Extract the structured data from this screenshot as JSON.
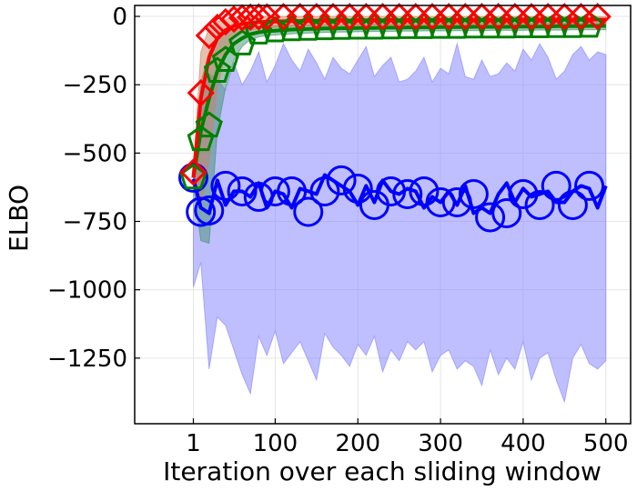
{
  "chart_data": {
    "type": "line",
    "xlabel": "Iteration over each sliding window",
    "ylabel": "ELBO",
    "xlim": [
      -70,
      530
    ],
    "ylim": [
      -1490,
      40
    ],
    "xticks": [
      1,
      100,
      200,
      300,
      400,
      500
    ],
    "xtick_labels": [
      "1",
      "100",
      "200",
      "300",
      "400",
      "500"
    ],
    "yticks": [
      0,
      -250,
      -500,
      -750,
      -1000,
      -1250
    ],
    "ytick_labels": [
      "0",
      "−250",
      "−500",
      "−750",
      "−1000",
      "−1250"
    ],
    "grid": true,
    "series": [
      {
        "color": "#0000ff",
        "fill_color": "#8080ff",
        "marker": "circle",
        "x": [
          1,
          10,
          20,
          30,
          40,
          50,
          60,
          70,
          80,
          90,
          100,
          110,
          120,
          130,
          140,
          150,
          160,
          170,
          180,
          190,
          200,
          210,
          220,
          230,
          240,
          250,
          260,
          270,
          280,
          290,
          300,
          310,
          320,
          330,
          340,
          350,
          360,
          370,
          380,
          390,
          400,
          410,
          420,
          430,
          440,
          450,
          460,
          470,
          480,
          490,
          500
        ],
        "y": [
          -595,
          -700,
          -720,
          -600,
          -690,
          -640,
          -640,
          -660,
          -610,
          -700,
          -640,
          -650,
          -700,
          -630,
          -640,
          -650,
          -580,
          -600,
          -620,
          -640,
          -690,
          -620,
          -680,
          -600,
          -640,
          -650,
          -630,
          -640,
          -700,
          -660,
          -680,
          -640,
          -690,
          -620,
          -720,
          -700,
          -720,
          -650,
          -610,
          -680,
          -630,
          -660,
          -650,
          -640,
          -680,
          -680,
          -640,
          -620,
          -630,
          -700,
          -620
        ],
        "upper": [
          -560,
          -260,
          -210,
          -230,
          -270,
          -170,
          -250,
          -200,
          -130,
          -240,
          -180,
          -100,
          -160,
          -200,
          -120,
          -170,
          -230,
          -150,
          -190,
          -210,
          -160,
          -110,
          -220,
          -180,
          -150,
          -240,
          -230,
          -200,
          -150,
          -240,
          -190,
          -210,
          -100,
          -220,
          -230,
          -160,
          -220,
          -210,
          -170,
          -200,
          -120,
          -160,
          -100,
          -150,
          -230,
          -200,
          -140,
          -110,
          -160,
          -130,
          -140
        ],
        "lower": [
          -990,
          -900,
          -1290,
          -1100,
          -1130,
          -1220,
          -1310,
          -1380,
          -1170,
          -1240,
          -1150,
          -1270,
          -1230,
          -1190,
          -1260,
          -1330,
          -1160,
          -1210,
          -1240,
          -1280,
          -1200,
          -1240,
          -1170,
          -1300,
          -1220,
          -1260,
          -1190,
          -1220,
          -1190,
          -1300,
          -1240,
          -1220,
          -1290,
          -1260,
          -1280,
          -1350,
          -1220,
          -1310,
          -1250,
          -1290,
          -1190,
          -1330,
          -1250,
          -1230,
          -1330,
          -1410,
          -1250,
          -1200,
          -1270,
          -1290,
          -1260
        ],
        "markers_at": [
          1,
          10,
          20,
          40,
          60,
          80,
          100,
          120,
          140,
          160,
          180,
          200,
          220,
          240,
          260,
          280,
          300,
          320,
          340,
          360,
          380,
          400,
          420,
          440,
          460,
          480
        ],
        "marker_y": [
          -590,
          -715,
          -710,
          -620,
          -640,
          -660,
          -640,
          -640,
          -715,
          -640,
          -600,
          -630,
          -690,
          -640,
          -650,
          -640,
          -680,
          -680,
          -650,
          -735,
          -720,
          -650,
          -690,
          -620,
          -690,
          -620
        ],
        "marker_y_cap": [
          -590,
          -715,
          -710,
          -620,
          -640,
          -660,
          -640,
          -640,
          -715,
          -640,
          -580,
          -630,
          -690,
          -640,
          -650,
          -640,
          -680,
          -680,
          -650,
          -735,
          -720,
          -650,
          -690,
          -620,
          -690,
          -620
        ]
      },
      {
        "color": "#008000",
        "fill_color": "#3f8f6f",
        "marker": "pentagon",
        "x": [
          1,
          10,
          20,
          30,
          40,
          50,
          60,
          70,
          80,
          90,
          100,
          110,
          120,
          130,
          140,
          150,
          160,
          170,
          180,
          190,
          200,
          210,
          220,
          230,
          240,
          250,
          260,
          270,
          280,
          290,
          300,
          310,
          320,
          330,
          340,
          350,
          360,
          370,
          380,
          390,
          400,
          410,
          420,
          430,
          440,
          450,
          460,
          470,
          480,
          490,
          500
        ],
        "y": [
          -590,
          -420,
          -300,
          -200,
          -140,
          -100,
          -80,
          -65,
          -58,
          -54,
          -52,
          -50,
          -48,
          -47,
          -46,
          -45,
          -44,
          -44,
          -43,
          -43,
          -42,
          -42,
          -42,
          -41,
          -41,
          -41,
          -40,
          -40,
          -40,
          -40,
          -39,
          -39,
          -39,
          -39,
          -38,
          -38,
          -38,
          -38,
          -38,
          -37,
          -37,
          -37,
          -37,
          -37,
          -36,
          -36,
          -36,
          -36,
          -35,
          -35,
          -35
        ],
        "upper": [
          -560,
          -240,
          -130,
          -80,
          -55,
          -45,
          -40,
          -38,
          -36,
          -35,
          -34,
          -33,
          -32,
          -32,
          -31,
          -31,
          -30,
          -30,
          -30,
          -29,
          -29,
          -29,
          -28,
          -28,
          -28,
          -28,
          -27,
          -27,
          -27,
          -27,
          -27,
          -26,
          -26,
          -26,
          -26,
          -26,
          -25,
          -25,
          -25,
          -25,
          -25,
          -25,
          -24,
          -24,
          -24,
          -24,
          -24,
          -24,
          -23,
          -23,
          -23
        ],
        "lower": [
          -620,
          -820,
          -830,
          -420,
          -260,
          -160,
          -110,
          -85,
          -75,
          -70,
          -68,
          -66,
          -64,
          -62,
          -61,
          -60,
          -59,
          -58,
          -57,
          -57,
          -56,
          -56,
          -55,
          -55,
          -55,
          -54,
          -54,
          -54,
          -53,
          -53,
          -53,
          -53,
          -52,
          -52,
          -52,
          -52,
          -51,
          -51,
          -51,
          -51,
          -51,
          -50,
          -50,
          -50,
          -50,
          -50,
          -49,
          -49,
          -49,
          -49,
          -49
        ],
        "markers_at": [
          1,
          10,
          20,
          30,
          40,
          60,
          80,
          100,
          120,
          140,
          160,
          180,
          200,
          220,
          240,
          260,
          280,
          300,
          320,
          340,
          360,
          380,
          400,
          420,
          440,
          460,
          480
        ],
        "marker_y": [
          -590,
          -450,
          -400,
          -200,
          -160,
          -100,
          -60,
          -52,
          -48,
          -46,
          -44,
          -43,
          -42,
          -42,
          -41,
          -40,
          -40,
          -39,
          -39,
          -38,
          -38,
          -38,
          -37,
          -37,
          -36,
          -36,
          -35
        ]
      },
      {
        "color": "#ff0000",
        "fill_color": "#d08060",
        "marker": "diamond",
        "x": [
          1,
          10,
          20,
          30,
          40,
          50,
          60,
          70,
          80,
          90,
          100,
          110,
          120,
          130,
          140,
          150,
          160,
          170,
          180,
          190,
          200,
          210,
          220,
          230,
          240,
          250,
          260,
          270,
          280,
          290,
          300,
          310,
          320,
          330,
          340,
          350,
          360,
          370,
          380,
          390,
          400,
          410,
          420,
          430,
          440,
          450,
          460,
          470,
          480,
          490,
          500
        ],
        "y": [
          -590,
          -300,
          -150,
          -80,
          -50,
          -35,
          -28,
          -24,
          -21,
          -20,
          -19,
          -18,
          -17,
          -17,
          -16,
          -16,
          -16,
          -15,
          -15,
          -15,
          -15,
          -14,
          -14,
          -14,
          -14,
          -14,
          -14,
          -14,
          -13,
          -13,
          -13,
          -13,
          -13,
          -13,
          -13,
          -13,
          -13,
          -13,
          -12,
          -12,
          -12,
          -12,
          -12,
          -12,
          -12,
          -12,
          -12,
          -12,
          -12,
          -12,
          -12
        ],
        "upper": [
          -560,
          -130,
          -40,
          -20,
          -10,
          -5,
          -3,
          -2,
          -1,
          0,
          0,
          0,
          0,
          0,
          0,
          0,
          0,
          0,
          0,
          0,
          0,
          0,
          0,
          0,
          0,
          0,
          0,
          0,
          0,
          0,
          0,
          0,
          0,
          0,
          0,
          0,
          0,
          0,
          0,
          0,
          0,
          0,
          0,
          0,
          0,
          0,
          0,
          0,
          0,
          0,
          0
        ],
        "lower": [
          -620,
          -700,
          -520,
          -260,
          -140,
          -80,
          -60,
          -50,
          -45,
          -42,
          -40,
          -38,
          -37,
          -36,
          -35,
          -35,
          -34,
          -34,
          -33,
          -33,
          -33,
          -32,
          -32,
          -32,
          -32,
          -31,
          -31,
          -31,
          -31,
          -31,
          -31,
          -30,
          -30,
          -30,
          -30,
          -30,
          -30,
          -30,
          -30,
          -29,
          -29,
          -29,
          -29,
          -29,
          -29,
          -29,
          -29,
          -29,
          -29,
          -29,
          -29
        ],
        "markers_at": [
          1,
          10,
          20,
          30,
          40,
          50,
          60,
          70,
          80,
          90,
          110,
          130,
          150,
          170,
          190,
          210,
          230,
          250,
          270,
          290,
          310,
          330,
          350,
          370,
          390,
          410,
          430,
          450,
          470,
          490
        ],
        "marker_y": [
          -570,
          -280,
          -70,
          -40,
          -20,
          -10,
          -5,
          -3,
          -2,
          -2,
          -1,
          -1,
          -1,
          -1,
          -1,
          -1,
          -1,
          -1,
          -1,
          -1,
          -1,
          -1,
          -1,
          -1,
          -1,
          -1,
          -1,
          -1,
          -1,
          -1
        ]
      }
    ]
  }
}
